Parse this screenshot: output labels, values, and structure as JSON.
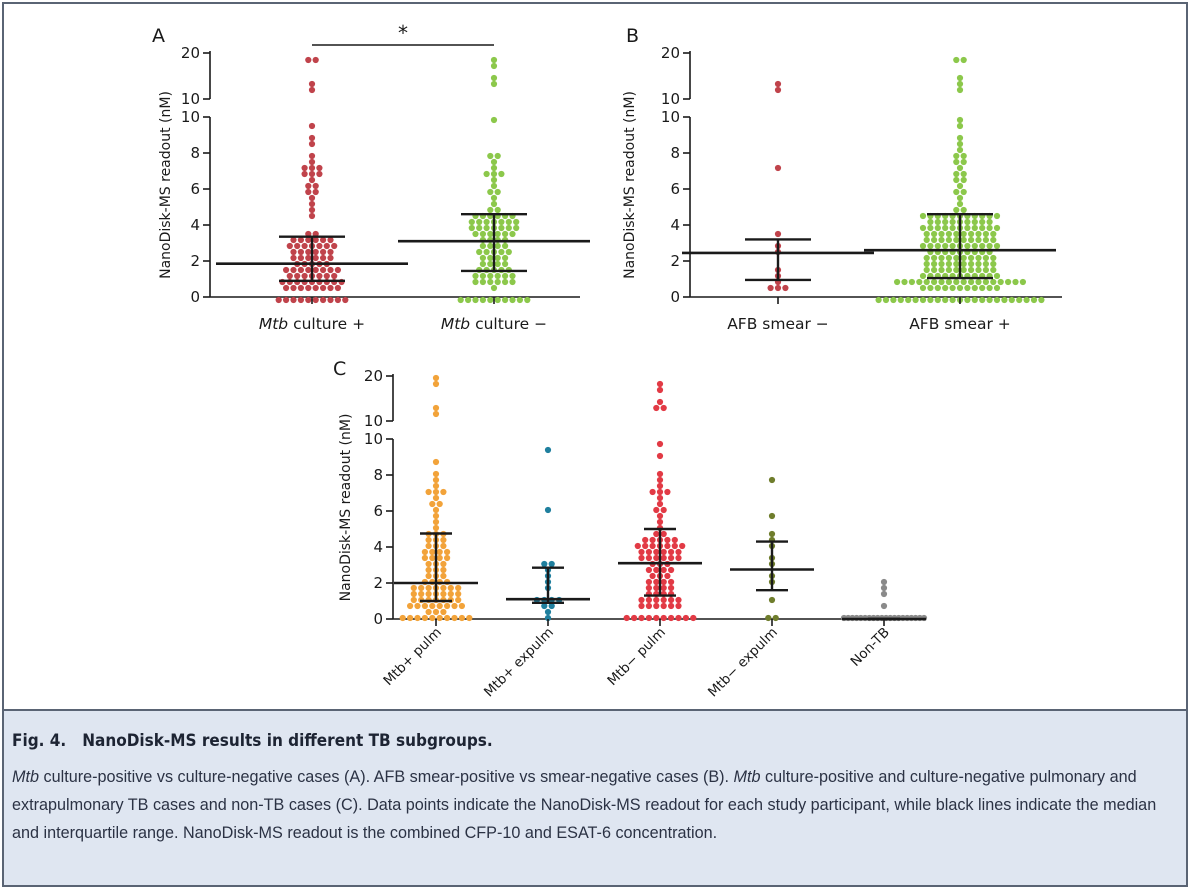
{
  "figure": {
    "caption_label": "Fig. 4.",
    "caption_title": "NanoDisk-MS results in different TB subgroups.",
    "caption_parts": [
      {
        "text": "Mtb",
        "italic": true
      },
      {
        "text": " culture-positive vs culture-negative cases (A). AFB smear-positive vs smear-negative cases (B). ",
        "italic": false
      },
      {
        "text": "Mtb",
        "italic": true
      },
      {
        "text": " culture-positive and culture-negative pulmonary and extrapulmonary TB cases and non-TB cases (C). Data points indicate the NanoDisk-MS readout for each study participant, while black lines indicate the median and interquartile range. NanoDisk-MS readout is the combined CFP-10 and ESAT-6 concentration.",
        "italic": false
      }
    ]
  },
  "colors": {
    "red": "#c0434b",
    "green": "#8cc84b",
    "orange": "#f2a33a",
    "teal": "#1f7f9e",
    "bright_red": "#e23a45",
    "olive": "#6f7d2c",
    "gray": "#8a8a8a",
    "ink": "#1a1a1a",
    "caption_bg": "#dfe6f1"
  },
  "chart_data": [
    {
      "panel": "A",
      "type": "scatter",
      "subtype": "dot-plot with median and IQR",
      "ylabel": "NanoDisk-MS readout (nM)",
      "y_axis": {
        "broken": true,
        "lower_ticks": [
          0,
          2,
          4,
          6,
          8,
          10
        ],
        "upper_ticks": [
          10,
          20
        ]
      },
      "annotation": "*",
      "groups": [
        {
          "label": "culture +",
          "label_italic_prefix": "Mtb",
          "color": "red",
          "n": 98,
          "median": 1.85,
          "q1": 0.9,
          "q3": 3.35,
          "high_values": [
            19.0,
            18.5,
            12.8,
            12.3,
            9.5,
            9.0,
            8.5,
            8.0,
            7.5,
            7.3,
            7.2,
            7.1,
            7.0,
            7.0,
            6.8,
            6.5,
            6.3,
            6.2,
            6.0,
            5.8,
            5.5,
            5.2,
            4.8,
            4.5
          ]
        },
        {
          "label": "culture −",
          "label_italic_prefix": "Mtb",
          "color": "green",
          "n": 95,
          "median": 3.1,
          "q1": 1.45,
          "q3": 4.6,
          "high_values": [
            18.0,
            17.5,
            14.0,
            13.5,
            10.0,
            8.0,
            7.8,
            7.5,
            7.3,
            7.0,
            7.0,
            6.8,
            6.5,
            6.3,
            6.0,
            5.8,
            5.5,
            5.2,
            5.0,
            4.8
          ]
        }
      ]
    },
    {
      "panel": "B",
      "type": "scatter",
      "subtype": "dot-plot with median and IQR",
      "ylabel": "NanoDisk-MS readout (nM)",
      "y_axis": {
        "broken": true,
        "lower_ticks": [
          0,
          2,
          4,
          6,
          8,
          10
        ],
        "upper_ticks": [
          10,
          20
        ]
      },
      "groups": [
        {
          "label": "AFB smear −",
          "color": "red",
          "n": 12,
          "median": 2.45,
          "q1": 0.95,
          "q3": 3.2,
          "values": [
            13.0,
            12.5,
            7.1,
            3.4,
            3.0,
            2.5,
            1.5,
            1.2,
            0.9,
            0.6,
            0.5,
            0.5
          ]
        },
        {
          "label": "AFB smear +",
          "color": "green",
          "n": 190,
          "median": 2.6,
          "q1": 1.05,
          "q3": 4.6,
          "high_values": [
            19.0,
            18.5,
            14.0,
            13.5,
            12.5,
            9.8,
            9.5,
            9.0,
            8.5,
            8.2,
            8.0,
            7.8,
            7.6,
            7.5,
            7.3,
            7.0,
            6.8,
            6.6,
            6.5,
            6.2,
            6.0,
            5.8,
            5.5,
            5.2,
            5.0,
            4.8
          ]
        }
      ]
    },
    {
      "panel": "C",
      "type": "scatter",
      "subtype": "dot-plot with median and IQR",
      "ylabel": "NanoDisk-MS readout (nM)",
      "y_axis": {
        "broken": true,
        "lower_ticks": [
          0,
          2,
          4,
          6,
          8,
          10
        ],
        "upper_ticks": [
          10,
          20
        ]
      },
      "groups": [
        {
          "label": "Mtb+ pulm",
          "color": "orange",
          "n": 90,
          "median": 2.0,
          "q1": 1.0,
          "q3": 4.75,
          "high_values": [
            19.0,
            18.5,
            12.5,
            12.0,
            8.6,
            8.2,
            7.8,
            7.5,
            7.2,
            7.0,
            7.0,
            6.8,
            6.5,
            6.3,
            6.0,
            5.8,
            5.5,
            5.0,
            4.8
          ]
        },
        {
          "label": "Mtb+ expulm",
          "color": "teal",
          "n": 16,
          "median": 1.1,
          "q1": 0.9,
          "q3": 2.85,
          "values": [
            9.5,
            6.2,
            3.2,
            2.9,
            2.8,
            2.5,
            2.0,
            1.8,
            1.2,
            1.0,
            0.9,
            0.9,
            0.8,
            0.8,
            0.5,
            0.0
          ]
        },
        {
          "label": "Mtb− pulm",
          "color": "bright_red",
          "n": 90,
          "median": 3.1,
          "q1": 1.3,
          "q3": 5.0,
          "high_values": [
            18.5,
            17.5,
            14.0,
            13.5,
            12.5,
            9.8,
            9.0,
            8.1,
            7.8,
            7.5,
            7.2,
            7.0,
            6.9,
            6.7,
            6.5,
            6.2,
            6.0,
            5.7,
            5.5,
            5.2
          ]
        },
        {
          "label": "Mtb− expulm",
          "color": "olive",
          "n": 12,
          "median": 2.75,
          "q1": 1.6,
          "q3": 4.3,
          "values": [
            7.6,
            5.8,
            4.8,
            4.5,
            4.2,
            3.5,
            3.0,
            2.5,
            2.0,
            1.2,
            0.1,
            0.0
          ]
        },
        {
          "label": "Non-TB",
          "color": "gray",
          "n": 24,
          "median": 0.0,
          "q1": 0.0,
          "q3": 0.0,
          "values": [
            1.9,
            1.7,
            1.3,
            0.8,
            0.2,
            0.1,
            0.05,
            0.0,
            0.0,
            0.0,
            0.0,
            0.0,
            0.0,
            0.0,
            0.0,
            0.0,
            0.0,
            0.0,
            0.0,
            0.0,
            0.0,
            0.0,
            0.0,
            0.0
          ]
        }
      ]
    }
  ]
}
